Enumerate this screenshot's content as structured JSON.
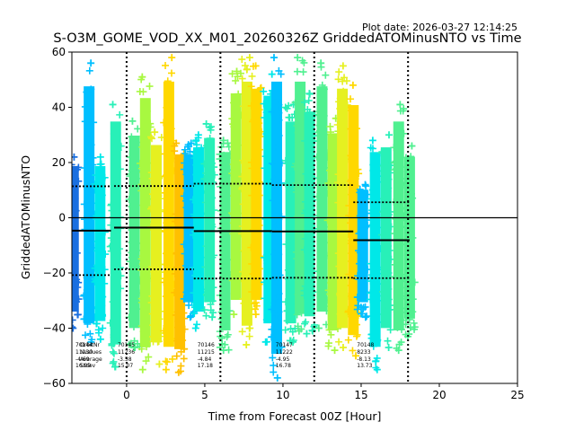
{
  "plot_date_label": "Plot date: 2026-03-27 12:14:25",
  "chart_data": {
    "type": "scatter",
    "title": "S-O3M_GOME_VOD_XX_M01_20260326Z GriddedATOMinusNTO vs Time",
    "xlabel": "Time from Forecast 00Z [Hour]",
    "ylabel": "GriddedATOMinusNTO",
    "xlim": [
      -3.5,
      25
    ],
    "ylim": [
      -60,
      60
    ],
    "xticks": [
      "0",
      "5",
      "10",
      "15",
      "20",
      "25"
    ],
    "xtick_values": [
      0,
      5,
      10,
      15,
      20,
      25
    ],
    "yticks": [
      "−60",
      "−40",
      "−20",
      "0",
      "20",
      "40",
      "60"
    ],
    "ytick_values": [
      -60,
      -40,
      -20,
      0,
      20,
      40,
      60
    ],
    "zero_line": 0,
    "analysis_times": [
      0,
      6,
      12,
      18
    ],
    "marker": "+",
    "colors": {
      "blue": "#1a6fe0",
      "sky": "#00bfff",
      "cyan": "#00e8e8",
      "aqua": "#28f0b8",
      "green": "#50f090",
      "lime": "#a8f840",
      "yellow": "#e6f020",
      "gold": "#ffd800",
      "orange": "#ffc000"
    },
    "strips": [
      {
        "x": -3.4,
        "lo": -40,
        "hi": 22,
        "color": "blue"
      },
      {
        "x": -2.4,
        "lo": -45,
        "hi": 56,
        "color": "sky"
      },
      {
        "x": -1.7,
        "lo": -44,
        "hi": 22,
        "color": "cyan"
      },
      {
        "x": -0.7,
        "lo": -54,
        "hi": 41,
        "color": "aqua"
      },
      {
        "x": 0.5,
        "lo": -47,
        "hi": 35,
        "color": "green"
      },
      {
        "x": 1.2,
        "lo": -55,
        "hi": 51,
        "color": "lime"
      },
      {
        "x": 1.9,
        "lo": -53,
        "hi": 31,
        "color": "yellow"
      },
      {
        "x": 2.7,
        "lo": -55,
        "hi": 58,
        "color": "gold"
      },
      {
        "x": 3.4,
        "lo": -56,
        "hi": 27,
        "color": "orange"
      },
      {
        "x": 4.0,
        "lo": -36,
        "hi": 27,
        "color": "sky"
      },
      {
        "x": 4.6,
        "lo": -40,
        "hi": 30,
        "color": "cyan"
      },
      {
        "x": 5.3,
        "lo": -36,
        "hi": 34,
        "color": "aqua"
      },
      {
        "x": 6.3,
        "lo": -48,
        "hi": 28,
        "color": "green"
      },
      {
        "x": 7.0,
        "lo": -35,
        "hi": 53,
        "color": "lime"
      },
      {
        "x": 7.7,
        "lo": -46,
        "hi": 58,
        "color": "yellow"
      },
      {
        "x": 8.3,
        "lo": -35,
        "hi": 55,
        "color": "gold"
      },
      {
        "x": 9.1,
        "lo": -45,
        "hi": 52,
        "color": "cyan"
      },
      {
        "x": 9.6,
        "lo": -58,
        "hi": 58,
        "color": "sky"
      },
      {
        "x": 10.5,
        "lo": -45,
        "hi": 41,
        "color": "aqua"
      },
      {
        "x": 11.1,
        "lo": -41,
        "hi": 58,
        "color": "green"
      },
      {
        "x": 11.7,
        "lo": -42,
        "hi": 45,
        "color": "aqua"
      },
      {
        "x": 12.5,
        "lo": -40,
        "hi": 56,
        "color": "green"
      },
      {
        "x": 13.2,
        "lo": -48,
        "hi": 36,
        "color": "lime"
      },
      {
        "x": 13.8,
        "lo": -47,
        "hi": 55,
        "color": "yellow"
      },
      {
        "x": 14.5,
        "lo": -50,
        "hi": 48,
        "color": "gold"
      },
      {
        "x": 15.1,
        "lo": -36,
        "hi": 12,
        "color": "sky"
      },
      {
        "x": 15.9,
        "lo": -55,
        "hi": 28,
        "color": "cyan"
      },
      {
        "x": 16.6,
        "lo": -47,
        "hi": 30,
        "color": "aqua"
      },
      {
        "x": 17.4,
        "lo": -48,
        "hi": 41,
        "color": "green"
      },
      {
        "x": 18.1,
        "lo": -43,
        "hi": 26,
        "color": "green"
      }
    ],
    "orbits": [
      {
        "x0": -3.5,
        "x1": -1.0,
        "average": -4.69,
        "stdev": 16.09,
        "orbit": "70144",
        "nvalues": "11230",
        "average_label": "-4.69",
        "stdev_label": "16.09"
      },
      {
        "x0": -0.8,
        "x1": 4.3,
        "average": -3.58,
        "stdev": 15.07,
        "orbit": "70145",
        "nvalues": "11236",
        "average_label": "-3.58",
        "stdev_label": "15.07"
      },
      {
        "x0": 4.3,
        "x1": 9.3,
        "average": -4.84,
        "stdev": 17.18,
        "orbit": "70146",
        "nvalues": "11215",
        "average_label": "-4.84",
        "stdev_label": "17.18"
      },
      {
        "x0": 9.3,
        "x1": 14.5,
        "average": -4.95,
        "stdev": 16.78,
        "orbit": "70147",
        "nvalues": "11222",
        "average_label": "-4.95",
        "stdev_label": "16.78"
      },
      {
        "x0": 14.5,
        "x1": 18.1,
        "average": -8.13,
        "stdev": 13.73,
        "orbit": "70148",
        "nvalues": "8233",
        "average_label": "-8.13",
        "stdev_label": "13.73"
      }
    ],
    "stats_header": [
      "OrbitNr",
      "Nvalues",
      "Average",
      "Stdev"
    ]
  }
}
